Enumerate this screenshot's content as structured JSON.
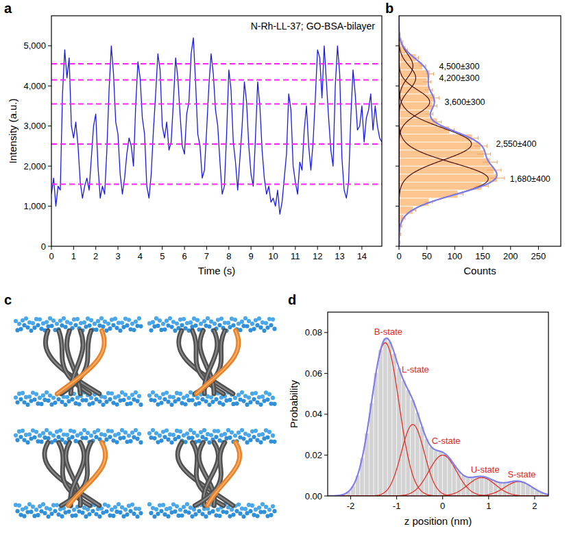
{
  "panel_labels": [
    "a",
    "b",
    "c",
    "d"
  ],
  "chart_data": [
    {
      "type": "line",
      "title": "N-Rh-LL-37; GO-BSA-bilayer",
      "x_label": "Time (s)",
      "y_label": "Intensity (a.u.)",
      "xlim": [
        0,
        14.9
      ],
      "xticks": [
        0,
        1,
        2,
        3,
        4,
        5,
        6,
        7,
        8,
        9,
        10,
        11,
        12,
        13,
        14
      ],
      "ylim": [
        0,
        5750
      ],
      "yticks": [
        0,
        {
          "value": 1000,
          "label": "1,000"
        },
        {
          "value": 2000,
          "label": "2,000"
        },
        {
          "value": 3000,
          "label": "3,000"
        },
        {
          "value": 4000,
          "label": "4,000"
        },
        {
          "value": 5000,
          "label": "5,000"
        }
      ],
      "x": [
        0,
        0.1,
        0.2,
        0.3,
        0.4,
        0.5,
        0.6,
        0.7,
        0.8,
        0.9,
        1,
        1.1,
        1.2,
        1.3,
        1.4,
        1.5,
        1.6,
        1.7,
        1.8,
        1.9,
        2,
        2.1,
        2.2,
        2.3,
        2.4,
        2.5,
        2.6,
        2.7,
        2.8,
        2.9,
        3,
        3.1,
        3.2,
        3.3,
        3.4,
        3.5,
        3.6,
        3.7,
        3.8,
        3.9,
        4,
        4.1,
        4.2,
        4.3,
        4.4,
        4.5,
        4.6,
        4.7,
        4.8,
        4.9,
        5,
        5.1,
        5.2,
        5.3,
        5.4,
        5.5,
        5.6,
        5.7,
        5.8,
        5.9,
        6,
        6.1,
        6.2,
        6.3,
        6.4,
        6.5,
        6.6,
        6.7,
        6.8,
        6.9,
        7,
        7.1,
        7.2,
        7.3,
        7.4,
        7.5,
        7.6,
        7.7,
        7.8,
        7.9,
        8,
        8.1,
        8.2,
        8.3,
        8.4,
        8.5,
        8.6,
        8.7,
        8.8,
        8.9,
        9,
        9.1,
        9.2,
        9.3,
        9.4,
        9.5,
        9.6,
        9.7,
        9.8,
        9.9,
        10,
        10.1,
        10.2,
        10.3,
        10.4,
        10.5,
        10.6,
        10.7,
        10.8,
        10.9,
        11,
        11.1,
        11.2,
        11.3,
        11.4,
        11.5,
        11.6,
        11.7,
        11.8,
        11.9,
        12,
        12.1,
        12.2,
        12.3,
        12.4,
        12.5,
        12.6,
        12.7,
        12.8,
        12.9,
        13,
        13.1,
        13.2,
        13.3,
        13.4,
        13.5,
        13.6,
        13.7,
        13.8,
        13.9,
        14,
        14.1,
        14.2,
        14.3,
        14.4,
        14.5,
        14.6,
        14.7,
        14.8,
        14.9
      ],
      "series": [
        {
          "color": "#1a1ae6",
          "values": [
            1300,
            1700,
            1000,
            1500,
            1400,
            3800,
            4900,
            4200,
            4700,
            3000,
            2700,
            3100,
            2500,
            1600,
            1200,
            1500,
            1700,
            1400,
            2200,
            3000,
            3300,
            2000,
            1200,
            1500,
            1300,
            2400,
            3900,
            5000,
            4300,
            3100,
            2800,
            1800,
            1300,
            1700,
            2300,
            2700,
            2500,
            2000,
            3500,
            4600,
            4200,
            3200,
            2800,
            1500,
            1200,
            1800,
            2900,
            3800,
            4800,
            4400,
            3000,
            2700,
            3100,
            2400,
            2600,
            3600,
            4700,
            4200,
            3300,
            2500,
            2300,
            3300,
            3600,
            4800,
            5200,
            4100,
            2800,
            2500,
            1700,
            1900,
            2900,
            4000,
            4800,
            4300,
            3400,
            3000,
            2100,
            1300,
            1500,
            2800,
            4400,
            3900,
            2600,
            2100,
            1400,
            2200,
            3000,
            4100,
            3600,
            2500,
            1800,
            1500,
            2700,
            4100,
            3500,
            2400,
            1700,
            1300,
            1500,
            1100,
            1200,
            1000,
            1400,
            800,
            1100,
            1700,
            2300,
            3800,
            3400,
            2000,
            1600,
            1300,
            2100,
            1900,
            2900,
            3500,
            2500,
            1900,
            2600,
            3700,
            4900,
            4700,
            3700,
            5000,
            4100,
            3200,
            2400,
            2000,
            4000,
            5000,
            4300,
            2200,
            1400,
            1200,
            1600,
            3200,
            4400,
            3800,
            2900,
            3000,
            3500,
            2600,
            3200,
            3400,
            3800,
            2900,
            3500,
            3000,
            2700,
            2600
          ]
        }
      ],
      "reference_lines": {
        "values": [
          1550,
          2550,
          3550,
          4150,
          4550
        ],
        "color": "#ff22ff",
        "line_style": "dashed"
      }
    },
    {
      "type": "histogram",
      "orientation": "horizontal",
      "x_label": "Counts",
      "tick_labels": "x",
      "xlim": [
        0,
        290
      ],
      "xticks": [
        0,
        50,
        100,
        150,
        200,
        250
      ],
      "ylim": [
        0,
        5750
      ],
      "yticks": [
        0,
        1000,
        2000,
        3000,
        4000,
        5000
      ],
      "bins": [
        0,
        200,
        400,
        600,
        800,
        1000,
        1200,
        1400,
        1600,
        1800,
        2000,
        2200,
        2400,
        2600,
        2800,
        3000,
        3200,
        3400,
        3600,
        3800,
        4000,
        4200,
        4400,
        4600,
        4800,
        5000,
        5200,
        5400,
        5600
      ],
      "values": [
        1,
        2,
        3,
        8,
        25,
        53,
        105,
        148,
        176,
        170,
        163,
        152,
        146,
        131,
        90,
        68,
        54,
        60,
        64,
        53,
        50,
        55,
        42,
        30,
        12,
        5,
        1,
        0
      ],
      "errors": [
        1,
        1,
        2,
        3,
        5,
        7,
        10,
        12,
        13,
        13,
        13,
        12,
        12,
        11,
        9,
        8,
        7,
        8,
        8,
        7,
        7,
        7,
        6,
        5,
        3,
        2,
        1,
        0
      ],
      "color": "#fdc590",
      "fits": [
        {
          "label": "4,500±300",
          "center": 4500,
          "width": 300,
          "amplitude": 25,
          "color": "#4a1010"
        },
        {
          "label": "4,200±300",
          "center": 4200,
          "width": 300,
          "amplitude": 30,
          "color": "#4a1010"
        },
        {
          "label": "3,600±300",
          "center": 3600,
          "width": 300,
          "amplitude": 55,
          "color": "#4a1010"
        },
        {
          "label": "2,550±400",
          "center": 2550,
          "width": 400,
          "amplitude": 130,
          "color": "#4a1010"
        },
        {
          "label": "1,680±400",
          "center": 1680,
          "width": 400,
          "amplitude": 160,
          "color": "#4a1010"
        }
      ],
      "envelope": {
        "color": "#7b7bf0"
      }
    },
    {
      "type": "histogram",
      "x_label": "z position (nm)",
      "y_label": "Probability",
      "xlim": [
        -2.5,
        2.3
      ],
      "xticks": [
        -2,
        -1,
        0,
        1,
        2
      ],
      "ylim": [
        0,
        0.09
      ],
      "yticks": [
        {
          "value": 0,
          "label": "0.00"
        },
        {
          "value": 0.02,
          "label": "0.02"
        },
        {
          "value": 0.04,
          "label": "0.04"
        },
        {
          "value": 0.06,
          "label": "0.06"
        },
        {
          "value": 0.08,
          "label": "0.08"
        }
      ],
      "bins": [
        -2.5,
        -2.4,
        -2.3,
        -2.2,
        -2.1,
        -2,
        -1.9,
        -1.8,
        -1.7,
        -1.6,
        -1.5,
        -1.4,
        -1.3,
        -1.2,
        -1.1,
        -1,
        -0.9,
        -0.8,
        -0.7,
        -0.6,
        -0.5,
        -0.4,
        -0.3,
        -0.2,
        -0.1,
        0,
        0.1,
        0.2,
        0.3,
        0.4,
        0.5,
        0.6,
        0.7,
        0.8,
        0.9,
        1,
        1.1,
        1.2,
        1.3,
        1.4,
        1.5,
        1.6,
        1.7,
        1.8,
        1.9,
        2,
        2.1,
        2.2,
        2.3
      ],
      "values": [
        0,
        0.0001,
        0.0003,
        0.0008,
        0.0021,
        0.0049,
        0.0101,
        0.0187,
        0.0308,
        0.0456,
        0.0602,
        0.0716,
        0.0772,
        0.0756,
        0.0697,
        0.0626,
        0.0566,
        0.0519,
        0.047,
        0.0409,
        0.034,
        0.0279,
        0.0241,
        0.0223,
        0.0218,
        0.0207,
        0.0184,
        0.0153,
        0.0123,
        0.0102,
        0.0092,
        0.0091,
        0.0095,
        0.0096,
        0.0091,
        0.0081,
        0.0072,
        0.0066,
        0.0064,
        0.0068,
        0.0072,
        0.0073,
        0.0067,
        0.0056,
        0.0042,
        0.0029,
        0.0017,
        0.0009
      ],
      "color": "#d3d3d3",
      "fits": [
        {
          "label": "B-state",
          "center": -1.25,
          "width": 0.3,
          "amplitude": 0.075,
          "color": "#e3261d"
        },
        {
          "label": "L-state",
          "center": -0.65,
          "width": 0.25,
          "amplitude": 0.035,
          "color": "#e3261d"
        },
        {
          "label": "C-state",
          "center": 0,
          "width": 0.3,
          "amplitude": 0.02,
          "color": "#e3261d"
        },
        {
          "label": "U-state",
          "center": 0.85,
          "width": 0.3,
          "amplitude": 0.009,
          "color": "#e3261d"
        },
        {
          "label": "S-state",
          "center": 1.65,
          "width": 0.3,
          "amplitude": 0.007,
          "color": "#e3261d"
        }
      ],
      "envelope": {
        "color": "#7f7ff0"
      }
    }
  ]
}
